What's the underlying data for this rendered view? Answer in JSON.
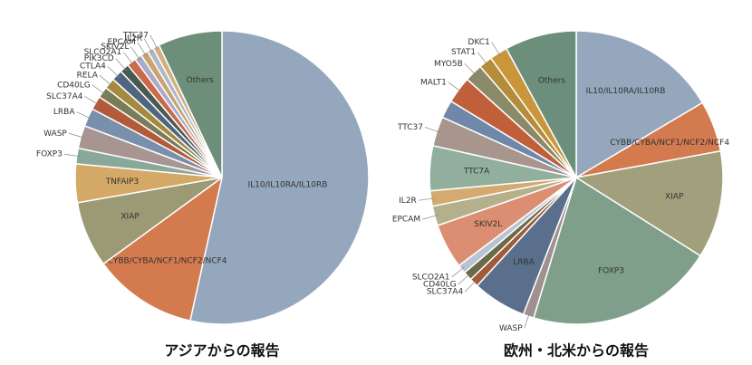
{
  "chart_data": [
    {
      "type": "pie",
      "title": "アジアからの報告",
      "categories": [
        "IL10/IL10RA/IL10RB",
        "CYBB/CYBA/NCF1/NCF2/NCF4",
        "XIAP",
        "TNFAIP3",
        "FOXP3",
        "WASP",
        "LRBA",
        "SLC37A4",
        "CD40LG",
        "RELA",
        "CTLA4",
        "PIK3CD",
        "SLCO2A1",
        "SKIV2L",
        "EPCAM",
        "IL2R",
        "TTC37",
        "Others"
      ],
      "values": [
        53,
        11.4,
        7.2,
        4.2,
        1.7,
        2.5,
        2,
        1.5,
        1.2,
        1.2,
        1.2,
        1,
        1,
        0.8,
        0.8,
        0.7,
        0.7,
        7
      ],
      "colors": [
        "#94a7bd",
        "#d47a4f",
        "#9b9a74",
        "#d4a866",
        "#8aa89a",
        "#a89591",
        "#7890ab",
        "#b35a3a",
        "#7a7b57",
        "#a48a3f",
        "#4f6580",
        "#4a5a52",
        "#c96a4a",
        "#a8aac8",
        "#c9a470",
        "#b0b8c8",
        "#d4b080",
        "#6d8f7a"
      ]
    },
    {
      "type": "pie",
      "title": "欧州・北米からの報告",
      "categories": [
        "IL10/IL10RA/IL10RB",
        "CYBB/CYBA/NCF1/NCF2/NCF4",
        "XIAP",
        "FOXP3",
        "WASP",
        "LRBA",
        "SLC37A4",
        "CD40LG",
        "SLCO2A1",
        "SKIV2L",
        "EPCAM",
        "IL2R",
        "TTC7A",
        "TTC37",
        null,
        "MALT1",
        "MYO5B",
        "STAT1",
        "DKC1",
        "Others"
      ],
      "values": [
        16.7,
        5.7,
        12,
        21,
        1.2,
        6,
        1,
        1,
        1,
        5,
        2.2,
        1.7,
        5,
        3.3,
        2,
        3,
        2,
        1.5,
        2,
        8
      ],
      "colors": [
        "#94a7bd",
        "#d47a4f",
        "#a29f7c",
        "#7f9f8b",
        "#a09090",
        "#5a6f8c",
        "#a05a38",
        "#6b6a48",
        "#b8c4d4",
        "#dc8e72",
        "#b5b08c",
        "#d4aa70",
        "#92ae9d",
        "#a8958e",
        "#6f88aa",
        "#c0603a",
        "#8a8a68",
        "#b48c3a",
        "#c9963c",
        "#6b8f7a"
      ]
    }
  ]
}
